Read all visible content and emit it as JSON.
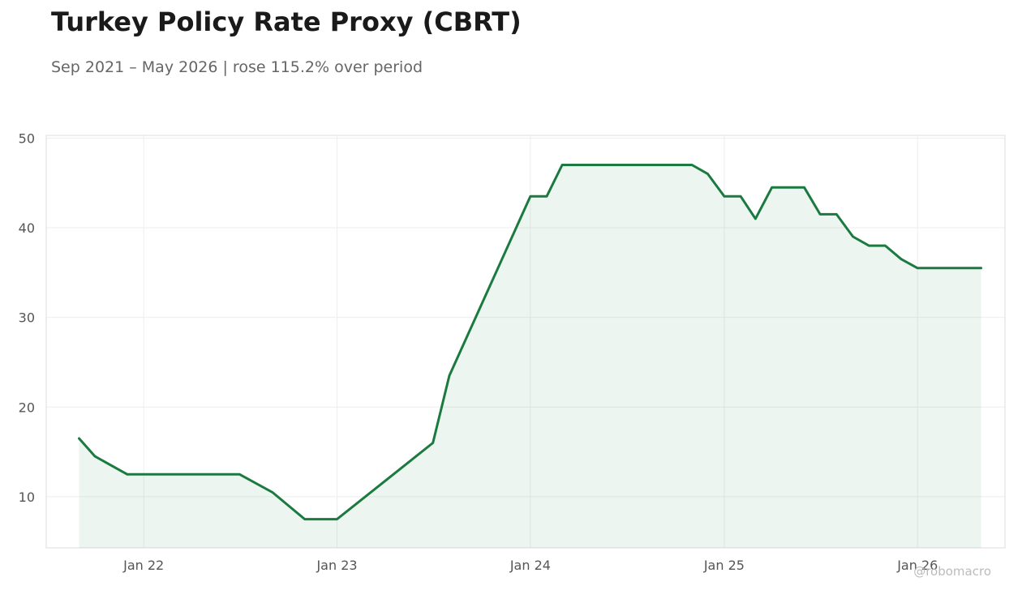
{
  "title": "Turkey Policy Rate Proxy (CBRT)",
  "subtitle": "Sep 2021 – May 2026 | rose 115.2% over period",
  "credit": "@robomacro",
  "colors": {
    "line": "#1a7a3f",
    "fill": "#1a7a3f",
    "grid": "#eeeeee",
    "frame": "#dddddd"
  },
  "chart_data": {
    "type": "area",
    "title": "Turkey Policy Rate Proxy (CBRT)",
    "subtitle": "Sep 2021 – May 2026 | rose 115.2% over period",
    "xlabel": "",
    "ylabel": "",
    "grid": true,
    "legend": "none",
    "x_range": [
      "2021-07-01",
      "2026-06-15"
    ],
    "ylim": [
      4.3,
      50.3
    ],
    "y_ticks": [
      10,
      20,
      30,
      40,
      50
    ],
    "x_ticks": [
      {
        "date": "2022-01-01",
        "label": "Jan 22"
      },
      {
        "date": "2023-01-01",
        "label": "Jan 23"
      },
      {
        "date": "2024-01-01",
        "label": "Jan 24"
      },
      {
        "date": "2025-01-01",
        "label": "Jan 25"
      },
      {
        "date": "2026-01-01",
        "label": "Jan 26"
      }
    ],
    "series": [
      {
        "points": [
          [
            "2021-09-01",
            16.5
          ],
          [
            "2021-10-01",
            14.5
          ],
          [
            "2021-12-01",
            12.5
          ],
          [
            "2022-07-01",
            12.5
          ],
          [
            "2022-09-01",
            10.5
          ],
          [
            "2022-11-01",
            7.5
          ],
          [
            "2023-01-01",
            7.5
          ],
          [
            "2023-07-01",
            16.0
          ],
          [
            "2023-08-01",
            23.5
          ],
          [
            "2024-01-01",
            43.5
          ],
          [
            "2024-02-01",
            43.5
          ],
          [
            "2024-03-01",
            47.0
          ],
          [
            "2024-11-01",
            47.0
          ],
          [
            "2024-12-01",
            46.0
          ],
          [
            "2025-01-01",
            43.5
          ],
          [
            "2025-02-01",
            43.5
          ],
          [
            "2025-03-01",
            41.0
          ],
          [
            "2025-04-01",
            44.5
          ],
          [
            "2025-06-01",
            44.5
          ],
          [
            "2025-07-01",
            41.5
          ],
          [
            "2025-08-01",
            41.5
          ],
          [
            "2025-09-01",
            39.0
          ],
          [
            "2025-10-01",
            38.0
          ],
          [
            "2025-11-01",
            38.0
          ],
          [
            "2025-12-01",
            36.5
          ],
          [
            "2026-01-01",
            35.5
          ],
          [
            "2026-05-01",
            35.5
          ]
        ]
      }
    ]
  }
}
